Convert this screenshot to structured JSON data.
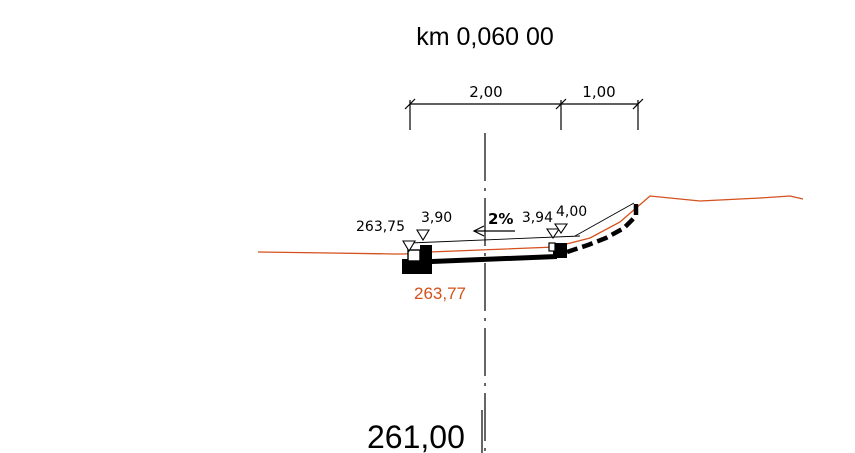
{
  "title": "km 0,060 00",
  "dimensions": {
    "left_width": "2,00",
    "right_width": "1,00"
  },
  "levels": {
    "left_elevation": "263,75",
    "left_offset": "3,90",
    "slope": "2%",
    "right_offset_a": "3,94",
    "right_offset_b": "4,00"
  },
  "terrain_elevation": "263,77",
  "datum_level": "261,00",
  "colors": {
    "terrain": "#d4501c",
    "structure": "#000000"
  }
}
